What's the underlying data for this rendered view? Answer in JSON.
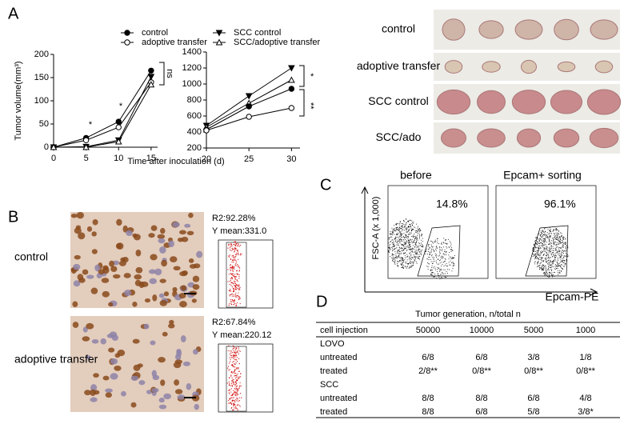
{
  "panel_labels": [
    "A",
    "B",
    "C",
    "D"
  ],
  "chart_data": [
    {
      "type": "line",
      "ylabel": "Tumor volume(mm³)",
      "xlabel": "Time after inoculation (d)",
      "x": [
        0,
        5,
        10,
        15
      ],
      "xlim": [
        0,
        16
      ],
      "xticks": [
        0,
        5,
        10,
        15
      ],
      "ylim": [
        0,
        200
      ],
      "yticks": [
        0,
        50,
        100,
        150,
        200
      ],
      "series": [
        {
          "name": "control",
          "color": "#000000",
          "marker": "filled-circle",
          "values": [
            0,
            20,
            55,
            165
          ]
        },
        {
          "name": "adoptive transfer",
          "color": "#000000",
          "marker": "open-circle",
          "values": [
            0,
            15,
            43,
            140
          ]
        },
        {
          "name": "SCC control",
          "color": "#000000",
          "marker": "filled-triangle",
          "values": [
            0,
            1,
            15,
            152
          ]
        },
        {
          "name": "SCC/adoptive transfer",
          "color": "#000000",
          "marker": "open-triangle",
          "values": [
            0,
            0,
            12,
            135
          ]
        }
      ],
      "annotations": [
        "*",
        "*",
        "ns"
      ]
    },
    {
      "type": "line",
      "x": [
        20,
        25,
        30
      ],
      "xlim": [
        20,
        31
      ],
      "xticks": [
        20,
        25,
        30
      ],
      "ylim": [
        200,
        1400
      ],
      "yticks": [
        200,
        400,
        600,
        800,
        1000,
        1200,
        1400
      ],
      "series": [
        {
          "color": "#000000",
          "marker": "filled-triangle",
          "values": [
            480,
            850,
            1200
          ]
        },
        {
          "color": "#000000",
          "marker": "open-triangle",
          "values": [
            460,
            760,
            1050
          ]
        },
        {
          "color": "#000000",
          "marker": "filled-circle",
          "values": [
            430,
            720,
            940
          ]
        },
        {
          "color": "#000000",
          "marker": "open-circle",
          "values": [
            420,
            590,
            700
          ]
        }
      ],
      "annotations": [
        "*",
        "**"
      ]
    }
  ],
  "photo_labels": [
    "control",
    "adoptive transfer",
    "SCC control",
    "SCC/ado"
  ],
  "histology": {
    "labels": [
      "control",
      "adoptive transfer"
    ],
    "stats": [
      [
        "R2:92.28%",
        "Y mean:331.0"
      ],
      [
        "R2:67.84%",
        "Y mean:220.12"
      ]
    ]
  },
  "sorting": {
    "titles": [
      "before",
      "Epcam+ sorting"
    ],
    "percents": [
      "14.8%",
      "96.1%"
    ],
    "ylabel": "FSC-A (x 1,000)",
    "xlabel": "Epcam-PE"
  },
  "table": {
    "title": "Tumor generation, n/total n",
    "header": [
      "cell injection",
      "50000",
      "10000",
      "5000",
      "1000"
    ],
    "rows": [
      [
        "LOVO"
      ],
      [
        "untreated",
        "6/8",
        "6/8",
        "3/8",
        "1/8"
      ],
      [
        "treated",
        "2/8**",
        "0/8**",
        "0/8**",
        "0/8**"
      ],
      [
        "SCC"
      ],
      [
        "untreated",
        "8/8",
        "8/8",
        "6/8",
        "4/8"
      ],
      [
        "treated",
        "8/8",
        "6/8",
        "5/8",
        "3/8*"
      ]
    ]
  }
}
